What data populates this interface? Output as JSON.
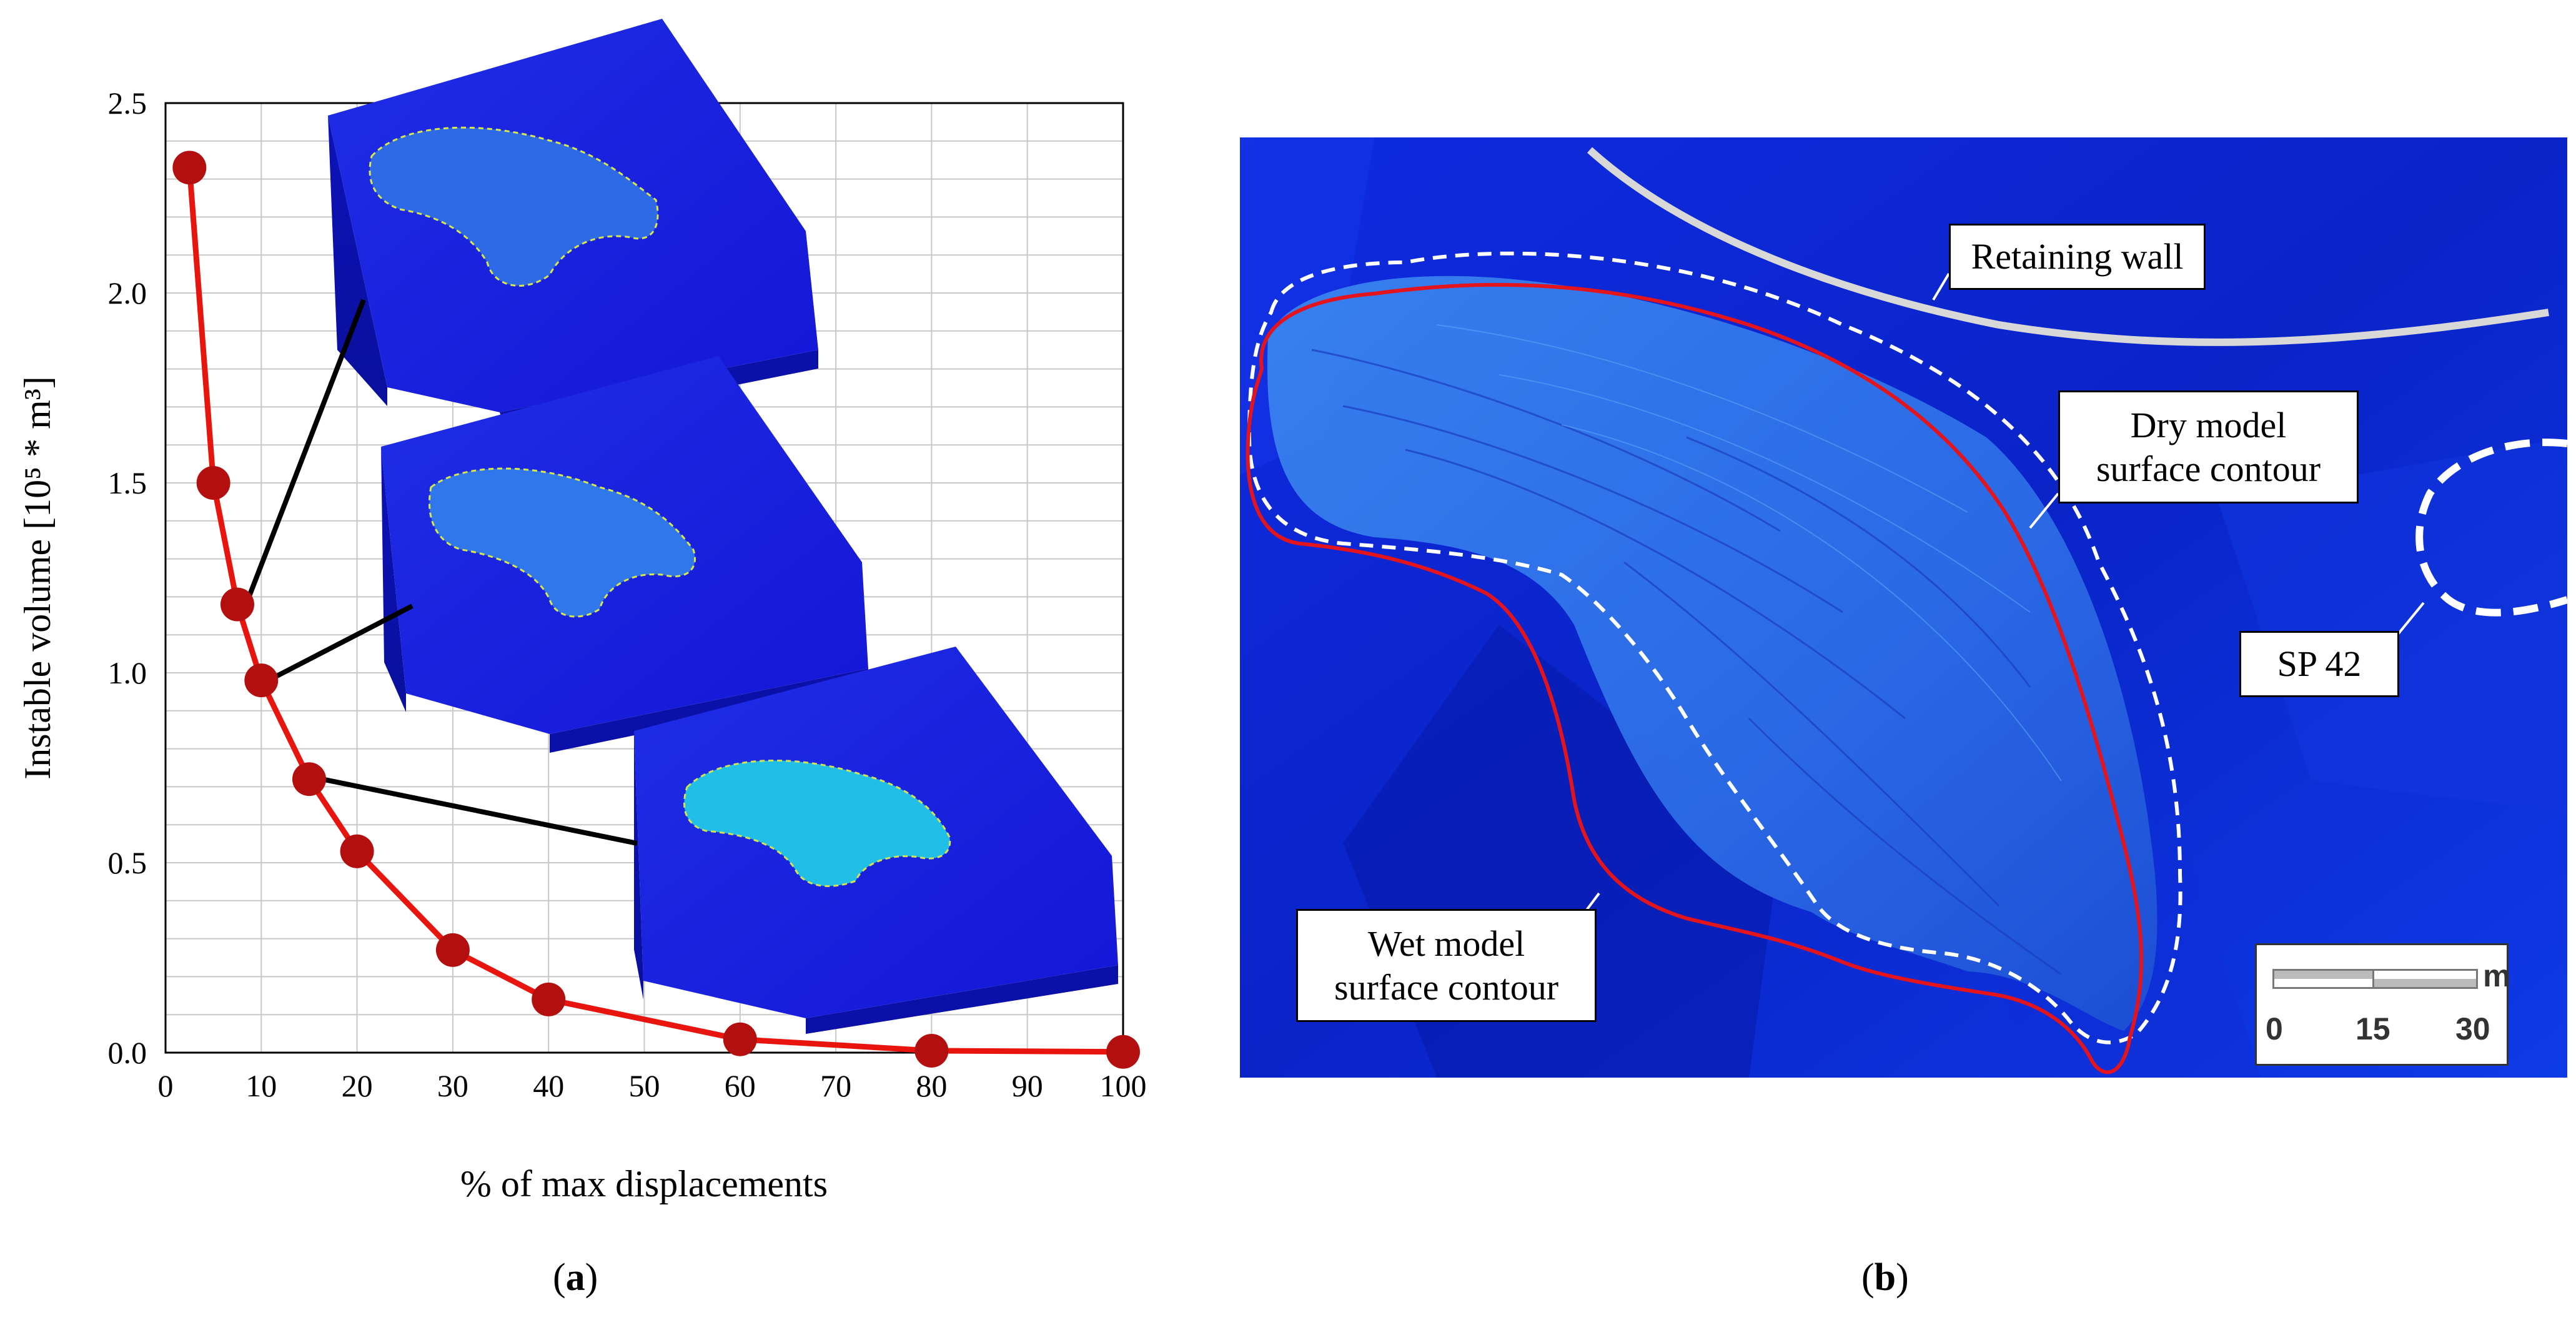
{
  "chart_data": {
    "type": "line",
    "x": [
      2.5,
      5,
      7.5,
      10,
      15,
      20,
      30,
      40,
      60,
      80,
      100
    ],
    "values": [
      2.33,
      1.5,
      1.18,
      0.98,
      0.72,
      0.53,
      0.27,
      0.14,
      0.035,
      0.005,
      0.002
    ],
    "xlabel": "% of max displacements",
    "ylabel": "Instable volume [10⁵ * m³]",
    "xlim": [
      0,
      100
    ],
    "ylim": [
      0,
      2.5
    ],
    "xticks": [
      "0",
      "10",
      "20",
      "30",
      "40",
      "50",
      "60",
      "70",
      "80",
      "90",
      "100"
    ],
    "yticks": [
      "0.0",
      "0.5",
      "1.0",
      "1.5",
      "2.0",
      "2.5"
    ],
    "grid": true,
    "line_color": "#e8150f",
    "marker_color": "#b30f0f"
  },
  "captions": {
    "a": "a",
    "b": "b"
  },
  "map": {
    "labels": {
      "retaining_wall": "Retaining wall",
      "dry_1": "Dry model",
      "dry_2": "surface contour",
      "wet_1": "Wet model",
      "wet_2": "surface contour",
      "sp": "SP 42"
    },
    "scale": {
      "unit": "m",
      "t0": "0",
      "t1": "15",
      "t2": "30"
    },
    "colors": {
      "wet": "#e3141c",
      "dry": "#ffffff",
      "ground": "#0a28d0"
    }
  }
}
